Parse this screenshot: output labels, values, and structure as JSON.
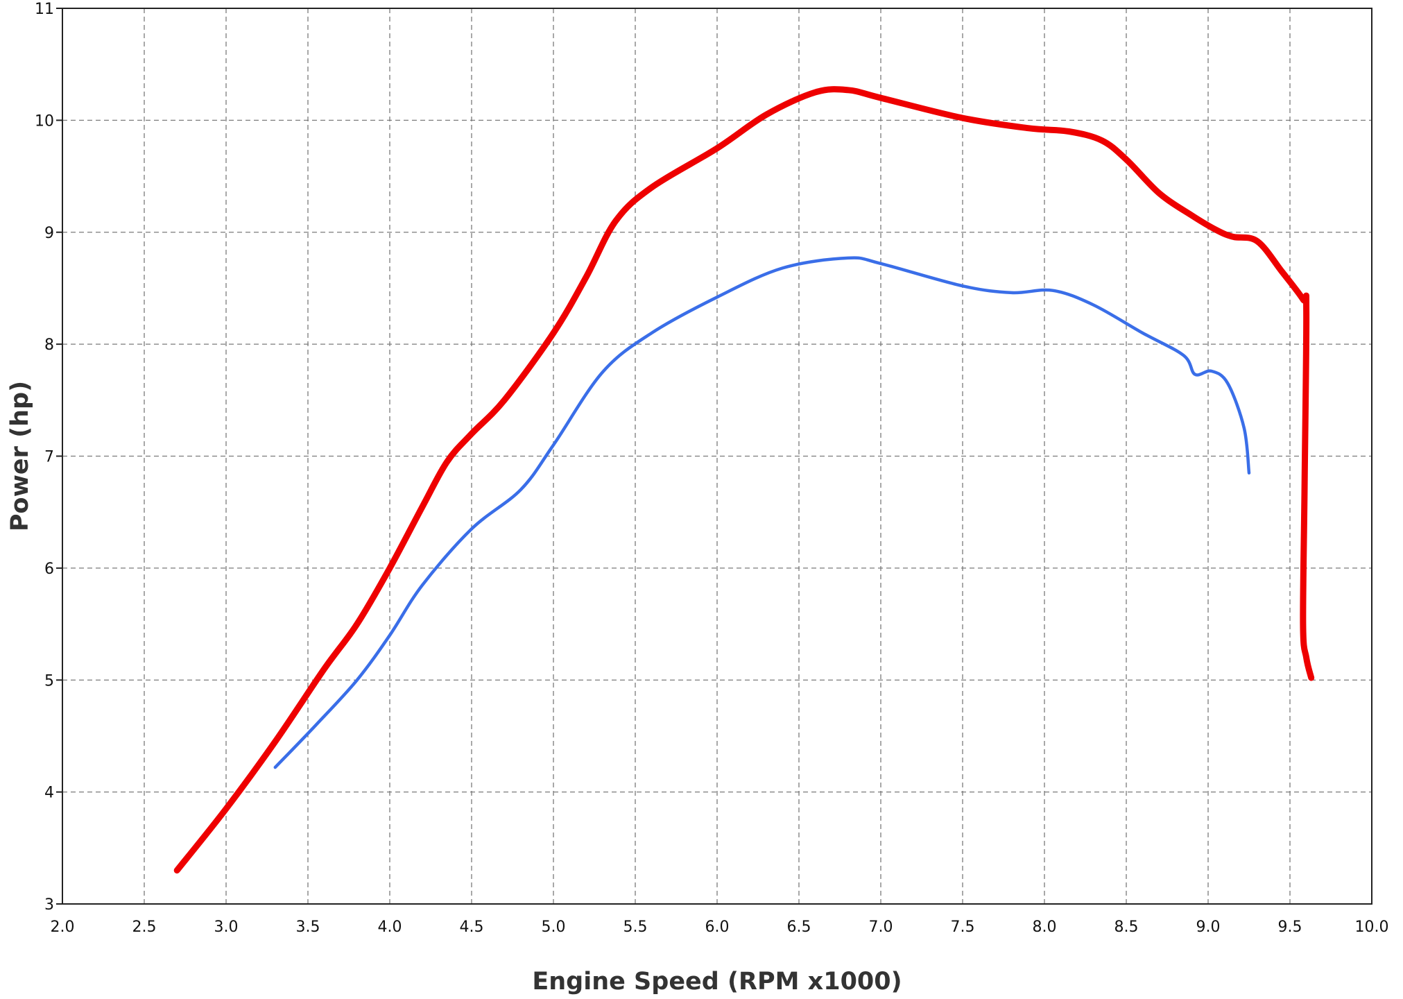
{
  "chart_data": {
    "type": "line",
    "title": "",
    "xlabel": "Engine Speed (RPM x1000)",
    "ylabel": "Power (hp)",
    "xlim": [
      2.0,
      10.0
    ],
    "ylim": [
      3,
      11
    ],
    "xticks": [
      "2.0",
      "2.5",
      "3.0",
      "3.5",
      "4.0",
      "4.5",
      "5.0",
      "5.5",
      "6.0",
      "6.5",
      "7.0",
      "7.5",
      "8.0",
      "8.5",
      "9.0",
      "9.5",
      "10.0"
    ],
    "yticks": [
      "3",
      "4",
      "5",
      "6",
      "7",
      "8",
      "9",
      "10",
      "11"
    ],
    "grid": true,
    "legend": "none",
    "series": [
      {
        "color": "#ee0000",
        "points": [
          [
            2.7,
            3.3
          ],
          [
            3.0,
            3.85
          ],
          [
            3.3,
            4.45
          ],
          [
            3.6,
            5.1
          ],
          [
            3.8,
            5.5
          ],
          [
            4.0,
            6.0
          ],
          [
            4.2,
            6.55
          ],
          [
            4.35,
            6.95
          ],
          [
            4.5,
            7.2
          ],
          [
            4.7,
            7.5
          ],
          [
            5.0,
            8.1
          ],
          [
            5.2,
            8.6
          ],
          [
            5.38,
            9.1
          ],
          [
            5.6,
            9.4
          ],
          [
            6.0,
            9.75
          ],
          [
            6.3,
            10.05
          ],
          [
            6.6,
            10.25
          ],
          [
            6.8,
            10.27
          ],
          [
            7.0,
            10.2
          ],
          [
            7.5,
            10.02
          ],
          [
            7.9,
            9.93
          ],
          [
            8.15,
            9.9
          ],
          [
            8.35,
            9.82
          ],
          [
            8.5,
            9.65
          ],
          [
            8.7,
            9.35
          ],
          [
            8.9,
            9.15
          ],
          [
            9.05,
            9.02
          ],
          [
            9.15,
            8.96
          ],
          [
            9.3,
            8.92
          ],
          [
            9.45,
            8.65
          ],
          [
            9.58,
            8.4
          ],
          [
            9.6,
            8.3
          ],
          [
            9.59,
            6.8
          ],
          [
            9.58,
            5.5
          ],
          [
            9.6,
            5.2
          ],
          [
            9.63,
            5.02
          ]
        ]
      },
      {
        "color": "#3a6ee8",
        "points": [
          [
            3.3,
            4.22
          ],
          [
            3.55,
            4.6
          ],
          [
            3.8,
            5.0
          ],
          [
            4.0,
            5.4
          ],
          [
            4.2,
            5.85
          ],
          [
            4.5,
            6.35
          ],
          [
            4.8,
            6.7
          ],
          [
            5.0,
            7.1
          ],
          [
            5.3,
            7.75
          ],
          [
            5.6,
            8.1
          ],
          [
            6.0,
            8.42
          ],
          [
            6.4,
            8.68
          ],
          [
            6.8,
            8.77
          ],
          [
            7.0,
            8.72
          ],
          [
            7.5,
            8.52
          ],
          [
            7.8,
            8.46
          ],
          [
            8.05,
            8.48
          ],
          [
            8.3,
            8.35
          ],
          [
            8.6,
            8.1
          ],
          [
            8.85,
            7.9
          ],
          [
            8.92,
            7.73
          ],
          [
            9.02,
            7.76
          ],
          [
            9.12,
            7.65
          ],
          [
            9.22,
            7.25
          ],
          [
            9.25,
            6.85
          ]
        ]
      }
    ]
  }
}
